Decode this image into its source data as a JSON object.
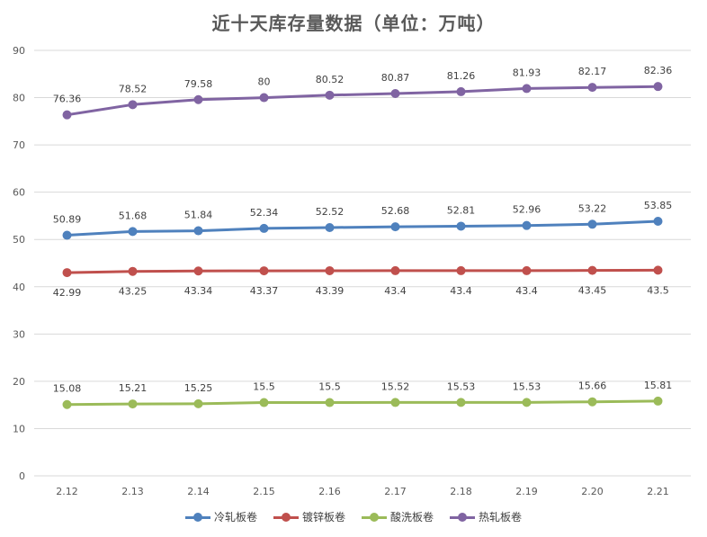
{
  "chart_data": {
    "type": "line",
    "title": "近十天库存量数据（单位：万吨）",
    "xlabel": "",
    "ylabel": "",
    "categories": [
      "2.12",
      "2.13",
      "2.14",
      "2.15",
      "2.16",
      "2.17",
      "2.18",
      "2.19",
      "2.20",
      "2.21"
    ],
    "ylim": [
      0,
      90
    ],
    "yticks": [
      "0",
      "10",
      "20",
      "30",
      "40",
      "50",
      "60",
      "70",
      "80",
      "90"
    ],
    "grid": true,
    "legend_position": "bottom",
    "series": [
      {
        "name": "冷轧板卷",
        "color": "#4F81BD",
        "label_position": "above",
        "values": [
          50.89,
          51.68,
          51.84,
          52.34,
          52.52,
          52.68,
          52.81,
          52.96,
          53.22,
          53.85
        ],
        "labels": [
          "50.89",
          "51.68",
          "51.84",
          "52.34",
          "52.52",
          "52.68",
          "52.81",
          "52.96",
          "53.22",
          "53.85"
        ]
      },
      {
        "name": "镀锌板卷",
        "color": "#C0504D",
        "label_position": "below",
        "values": [
          42.99,
          43.25,
          43.34,
          43.37,
          43.39,
          43.4,
          43.4,
          43.4,
          43.45,
          43.5
        ],
        "labels": [
          "42.99",
          "43.25",
          "43.34",
          "43.37",
          "43.39",
          "43.4",
          "43.4",
          "43.4",
          "43.45",
          "43.5"
        ]
      },
      {
        "name": "酸洗板卷",
        "color": "#9BBB59",
        "label_position": "above",
        "values": [
          15.08,
          15.21,
          15.25,
          15.5,
          15.5,
          15.52,
          15.53,
          15.53,
          15.66,
          15.81
        ],
        "labels": [
          "15.08",
          "15.21",
          "15.25",
          "15.5",
          "15.5",
          "15.52",
          "15.53",
          "15.53",
          "15.66",
          "15.81"
        ]
      },
      {
        "name": "热轧板卷",
        "color": "#8064A2",
        "label_position": "above",
        "values": [
          76.36,
          78.52,
          79.58,
          80,
          80.52,
          80.87,
          81.26,
          81.93,
          82.17,
          82.36
        ],
        "labels": [
          "76.36",
          "78.52",
          "79.58",
          "80",
          "80.52",
          "80.87",
          "81.26",
          "81.93",
          "82.17",
          "82.36"
        ]
      }
    ]
  }
}
